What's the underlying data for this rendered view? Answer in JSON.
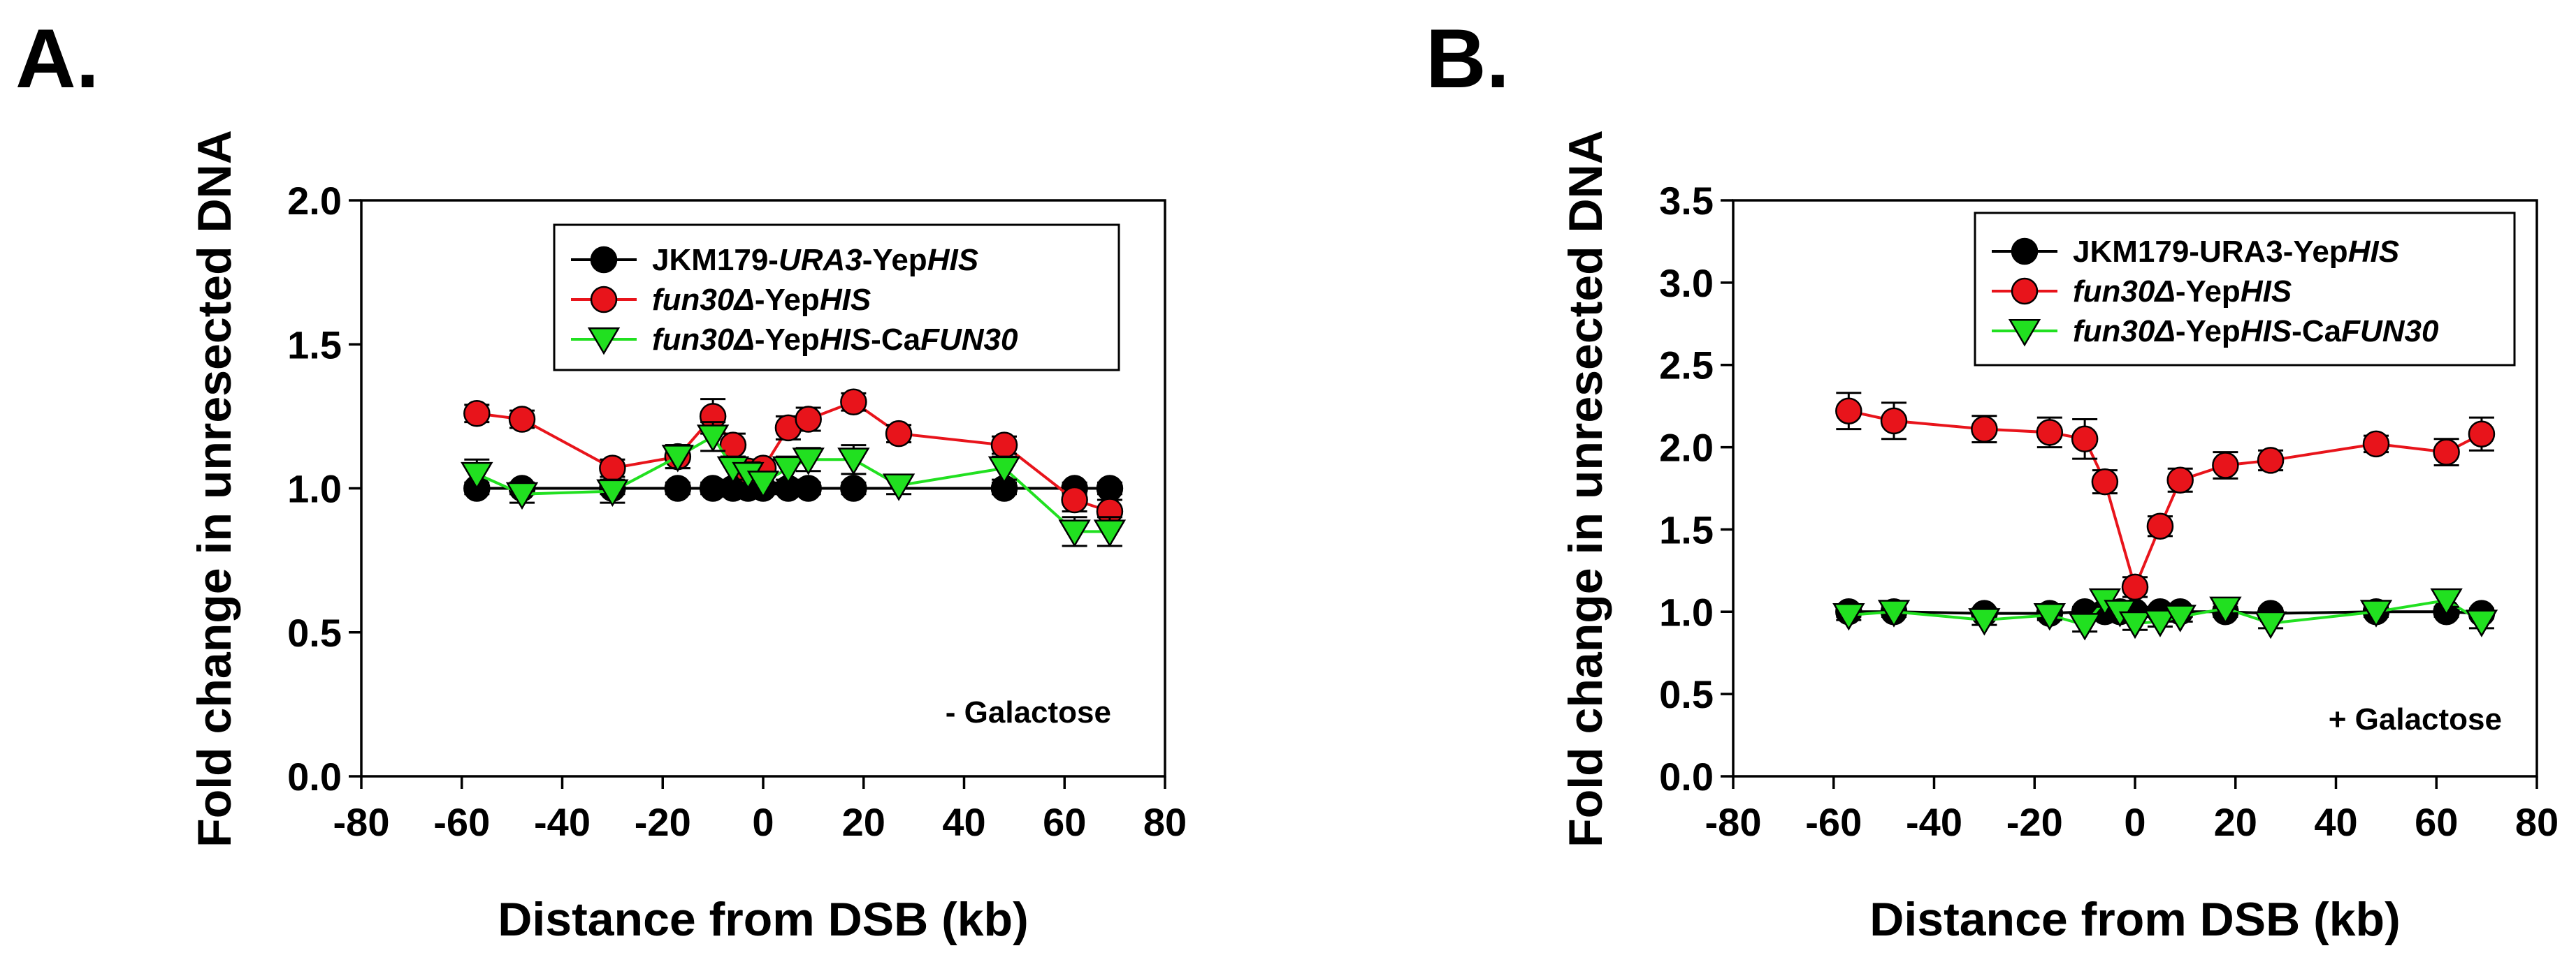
{
  "chart_data": [
    {
      "type": "line",
      "panel_label": "A.",
      "xlabel": "Distance from DSB (kb)",
      "ylabel": "Fold change in unresected DNA",
      "xlim": [
        -80,
        80
      ],
      "ylim": [
        0,
        2.0
      ],
      "xticks": [
        -80,
        -60,
        -40,
        -20,
        0,
        20,
        40,
        60,
        80
      ],
      "yticks": [
        "0.0",
        "0.5",
        "1.0",
        "1.5",
        "2.0"
      ],
      "ytick_values": [
        0,
        0.5,
        1.0,
        1.5,
        2.0
      ],
      "annotation": "- Galactose",
      "legend": {
        "position": "top-right",
        "entries": [
          {
            "parts": [
              {
                "t": "JKM179-",
                "i": false
              },
              {
                "t": "URA3",
                "i": true
              },
              {
                "t": "-Yep",
                "i": false
              },
              {
                "t": "HIS",
                "i": true
              }
            ]
          },
          {
            "parts": [
              {
                "t": "fun30Δ",
                "i": true
              },
              {
                "t": "-Yep",
                "i": false
              },
              {
                "t": "HIS",
                "i": true
              }
            ]
          },
          {
            "parts": [
              {
                "t": "fun30Δ",
                "i": true
              },
              {
                "t": "-Yep",
                "i": false
              },
              {
                "t": "HIS",
                "i": true
              },
              {
                "t": "-Ca",
                "i": false
              },
              {
                "t": "FUN30",
                "i": true
              }
            ]
          }
        ]
      },
      "series": [
        {
          "color": "#000000",
          "marker": "circle",
          "x": [
            -57,
            -48,
            -30,
            -17,
            -10,
            -6,
            -3,
            0,
            5,
            9,
            18,
            48,
            62,
            69
          ],
          "y": [
            1.0,
            1.0,
            1.0,
            1.0,
            1.0,
            1.0,
            1.0,
            1.0,
            1.0,
            1.0,
            1.0,
            1.0,
            1.0,
            1.0
          ],
          "err": [
            0.02,
            0.02,
            0.02,
            0.02,
            0.02,
            0.02,
            0.02,
            0.02,
            0.02,
            0.02,
            0.02,
            0.02,
            0.02,
            0.02
          ]
        },
        {
          "color": "#e8141b",
          "marker": "circle",
          "x": [
            -57,
            -48,
            -30,
            -17,
            -10,
            -6,
            -3,
            0,
            5,
            9,
            18,
            27,
            48,
            62,
            69
          ],
          "y": [
            1.26,
            1.24,
            1.07,
            1.11,
            1.25,
            1.15,
            1.06,
            1.07,
            1.21,
            1.24,
            1.3,
            1.19,
            1.15,
            0.96,
            0.92
          ],
          "err": [
            0.03,
            0.03,
            0.03,
            0.04,
            0.06,
            0.04,
            0.04,
            0.03,
            0.04,
            0.04,
            0.03,
            0.03,
            0.03,
            0.04,
            0.04
          ]
        },
        {
          "color": "#21e020",
          "marker": "triangle-down",
          "x": [
            -57,
            -48,
            -30,
            -17,
            -10,
            -6,
            -3,
            0,
            5,
            9,
            18,
            27,
            48,
            62,
            69
          ],
          "y": [
            1.05,
            0.98,
            0.99,
            1.11,
            1.18,
            1.07,
            1.05,
            1.02,
            1.07,
            1.1,
            1.1,
            1.01,
            1.07,
            0.85,
            0.85
          ],
          "err": [
            0.05,
            0.03,
            0.04,
            0.04,
            0.05,
            0.04,
            0.04,
            0.03,
            0.04,
            0.04,
            0.05,
            0.03,
            0.04,
            0.05,
            0.05
          ]
        }
      ]
    },
    {
      "type": "line",
      "panel_label": "B.",
      "xlabel": "Distance from DSB (kb)",
      "ylabel": "Fold change in unresected DNA",
      "xlim": [
        -80,
        80
      ],
      "ylim": [
        0,
        3.5
      ],
      "xticks": [
        -80,
        -60,
        -40,
        -20,
        0,
        20,
        40,
        60,
        80
      ],
      "yticks": [
        "0.0",
        "0.5",
        "1.0",
        "1.5",
        "2.0",
        "2.5",
        "3.0",
        "3.5"
      ],
      "ytick_values": [
        0,
        0.5,
        1.0,
        1.5,
        2.0,
        2.5,
        3.0,
        3.5
      ],
      "annotation": "+ Galactose",
      "legend": {
        "position": "top-right",
        "entries": [
          {
            "parts": [
              {
                "t": "JKM179-URA3-Yep",
                "i": false
              },
              {
                "t": "HIS",
                "i": true
              }
            ]
          },
          {
            "parts": [
              {
                "t": "fun30Δ",
                "i": true
              },
              {
                "t": "-Yep",
                "i": false
              },
              {
                "t": "HIS",
                "i": true
              }
            ]
          },
          {
            "parts": [
              {
                "t": "fun30Δ",
                "i": true
              },
              {
                "t": "-Yep",
                "i": false
              },
              {
                "t": "HIS",
                "i": true
              },
              {
                "t": "-Ca",
                "i": false
              },
              {
                "t": "FUN30",
                "i": true
              }
            ]
          }
        ]
      },
      "series": [
        {
          "color": "#000000",
          "marker": "circle",
          "x": [
            -57,
            -48,
            -30,
            -17,
            -10,
            -6,
            -3,
            0,
            5,
            9,
            18,
            27,
            48,
            62,
            69
          ],
          "y": [
            1.0,
            1.0,
            0.99,
            0.99,
            1.0,
            1.0,
            1.0,
            1.0,
            1.0,
            1.0,
            1.0,
            0.99,
            1.0,
            1.0,
            0.99
          ],
          "err": [
            0.03,
            0.03,
            0.03,
            0.03,
            0.03,
            0.03,
            0.03,
            0.03,
            0.03,
            0.03,
            0.03,
            0.03,
            0.03,
            0.03,
            0.03
          ]
        },
        {
          "color": "#e8141b",
          "marker": "circle",
          "x": [
            -57,
            -48,
            -30,
            -17,
            -10,
            -6,
            0,
            5,
            9,
            18,
            27,
            48,
            62,
            69
          ],
          "y": [
            2.22,
            2.16,
            2.11,
            2.09,
            2.05,
            1.79,
            1.15,
            1.52,
            1.8,
            1.89,
            1.92,
            2.02,
            1.97,
            2.08
          ],
          "err": [
            0.11,
            0.11,
            0.08,
            0.09,
            0.12,
            0.07,
            0.06,
            0.06,
            0.07,
            0.08,
            0.06,
            0.05,
            0.08,
            0.1
          ]
        },
        {
          "color": "#21e020",
          "marker": "triangle-down",
          "x": [
            -57,
            -48,
            -30,
            -17,
            -10,
            -6,
            -3,
            0,
            5,
            9,
            18,
            27,
            48,
            62,
            69
          ],
          "y": [
            0.98,
            1.0,
            0.95,
            0.98,
            0.92,
            1.07,
            1.0,
            0.93,
            0.94,
            0.97,
            1.02,
            0.93,
            1.0,
            1.07,
            0.94
          ],
          "err": [
            0.03,
            0.03,
            0.03,
            0.03,
            0.04,
            0.04,
            0.03,
            0.04,
            0.03,
            0.03,
            0.03,
            0.03,
            0.03,
            0.04,
            0.04
          ]
        }
      ]
    }
  ]
}
